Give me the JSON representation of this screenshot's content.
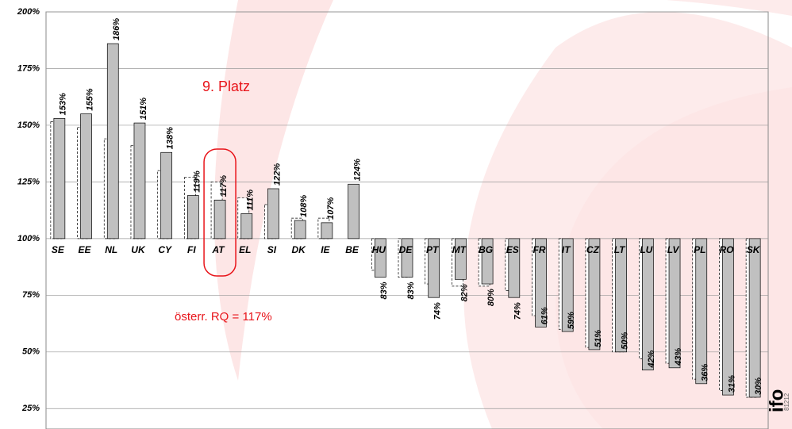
{
  "chart_data": {
    "type": "bar",
    "categories": [
      "SE",
      "EE",
      "NL",
      "UK",
      "CY",
      "FI",
      "AT",
      "EL",
      "SI",
      "DK",
      "IE",
      "BE",
      "HU",
      "DE",
      "PT",
      "MT",
      "BG",
      "ES",
      "FR",
      "IT",
      "CZ",
      "LT",
      "LU",
      "LV",
      "PL",
      "RO",
      "SK"
    ],
    "series": [
      {
        "color": "#ffffff",
        "values": [
          151.5,
          149,
          144,
          141,
          130,
          127,
          125,
          118,
          115,
          109,
          109,
          null,
          86,
          83,
          80,
          79,
          79,
          77,
          66,
          60,
          52,
          50,
          47,
          45,
          38,
          33,
          30
        ]
      },
      {
        "color": "#c0c0c0",
        "values": [
          153,
          155,
          186,
          151,
          138,
          119,
          117,
          111,
          122,
          108,
          107,
          124,
          83,
          83,
          74,
          82,
          80,
          74,
          61,
          59,
          51,
          50,
          42,
          43,
          36,
          31,
          30
        ],
        "value_labels": [
          "153%",
          "155%",
          "186%",
          "151%",
          "138%",
          "119%",
          "117%",
          "111%",
          "122%",
          "108%",
          "107%",
          "124%",
          "83%",
          "83%",
          "74%",
          "82%",
          "80%",
          "74%",
          "61%",
          "59%",
          "51%",
          "50%",
          "42%",
          "43%",
          "36%",
          "31%",
          "30%"
        ]
      }
    ],
    "baseline": 100,
    "ylim": [
      16,
      200
    ],
    "yticks": [
      {
        "value": 25,
        "label": "25%"
      },
      {
        "value": 50,
        "label": "50%"
      },
      {
        "value": 75,
        "label": "75%"
      },
      {
        "value": 100,
        "label": "100%"
      },
      {
        "value": 125,
        "label": "125%"
      },
      {
        "value": 150,
        "label": "150%"
      },
      {
        "value": 175,
        "label": "175%"
      },
      {
        "value": 200,
        "label": "200%"
      }
    ],
    "grid": true,
    "annotations": [
      "9. Platz",
      "österr. RQ = 117%"
    ],
    "logo": "ifo",
    "code": "81212"
  }
}
